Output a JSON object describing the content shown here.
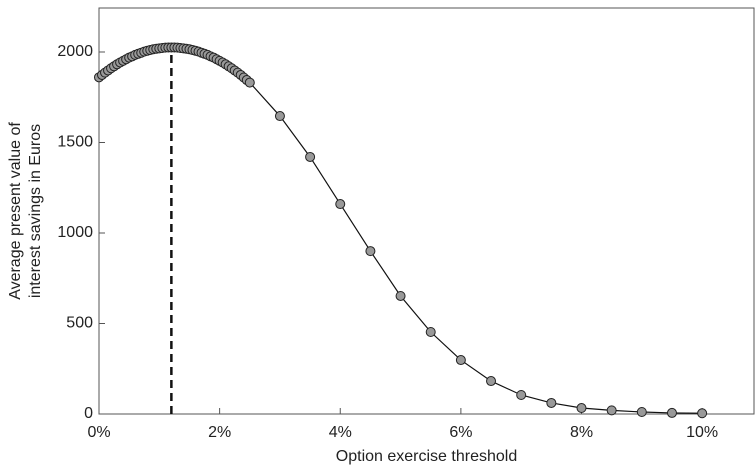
{
  "chart_data": {
    "type": "line",
    "xlabel": "Option exercise threshold",
    "ylabel": [
      "Average present value of",
      "interest savings in Euros"
    ],
    "x": [
      0,
      0.05,
      0.1,
      0.15,
      0.2,
      0.25,
      0.3,
      0.35,
      0.4,
      0.45,
      0.5,
      0.55,
      0.6,
      0.65,
      0.7,
      0.75,
      0.8,
      0.85,
      0.9,
      0.95,
      1.0,
      1.05,
      1.1,
      1.15,
      1.2,
      1.25,
      1.3,
      1.35,
      1.4,
      1.45,
      1.5,
      1.55,
      1.6,
      1.65,
      1.7,
      1.75,
      1.8,
      1.85,
      1.9,
      1.95,
      2.0,
      2.05,
      2.1,
      2.15,
      2.2,
      2.25,
      2.3,
      2.35,
      2.4,
      2.45,
      2.5,
      3,
      3.5,
      4,
      4.5,
      5,
      5.5,
      6,
      6.5,
      7,
      7.5,
      8,
      8.5,
      9,
      9.5,
      10
    ],
    "values": [
      1860,
      1873,
      1886,
      1898,
      1910,
      1921,
      1932,
      1942,
      1951,
      1960,
      1969,
      1976,
      1984,
      1990,
      1996,
      2002,
      2007,
      2011,
      2015,
      2018,
      2020,
      2022,
      2024,
      2025,
      2025,
      2025,
      2024,
      2022,
      2020,
      2018,
      2015,
      2011,
      2007,
      2002,
      1996,
      1990,
      1984,
      1976,
      1969,
      1960,
      1951,
      1942,
      1932,
      1921,
      1910,
      1898,
      1886,
      1873,
      1859,
      1845,
      1831,
      1646,
      1420,
      1160,
      900,
      652,
      453,
      298,
      182,
      105,
      61,
      33,
      20,
      11,
      6,
      4
    ],
    "color": "#999999",
    "vline": 1.2,
    "xlim": [
      0,
      10.86
    ],
    "ylim": [
      0,
      2243
    ],
    "xticks": [
      {
        "value": 0,
        "label": "0%"
      },
      {
        "value": 2,
        "label": "2%"
      },
      {
        "value": 4,
        "label": "4%"
      },
      {
        "value": 6,
        "label": "6%"
      },
      {
        "value": 8,
        "label": "8%"
      },
      {
        "value": 10,
        "label": "10%"
      }
    ],
    "yticks": [
      0,
      500,
      1000,
      1500,
      2000
    ]
  }
}
